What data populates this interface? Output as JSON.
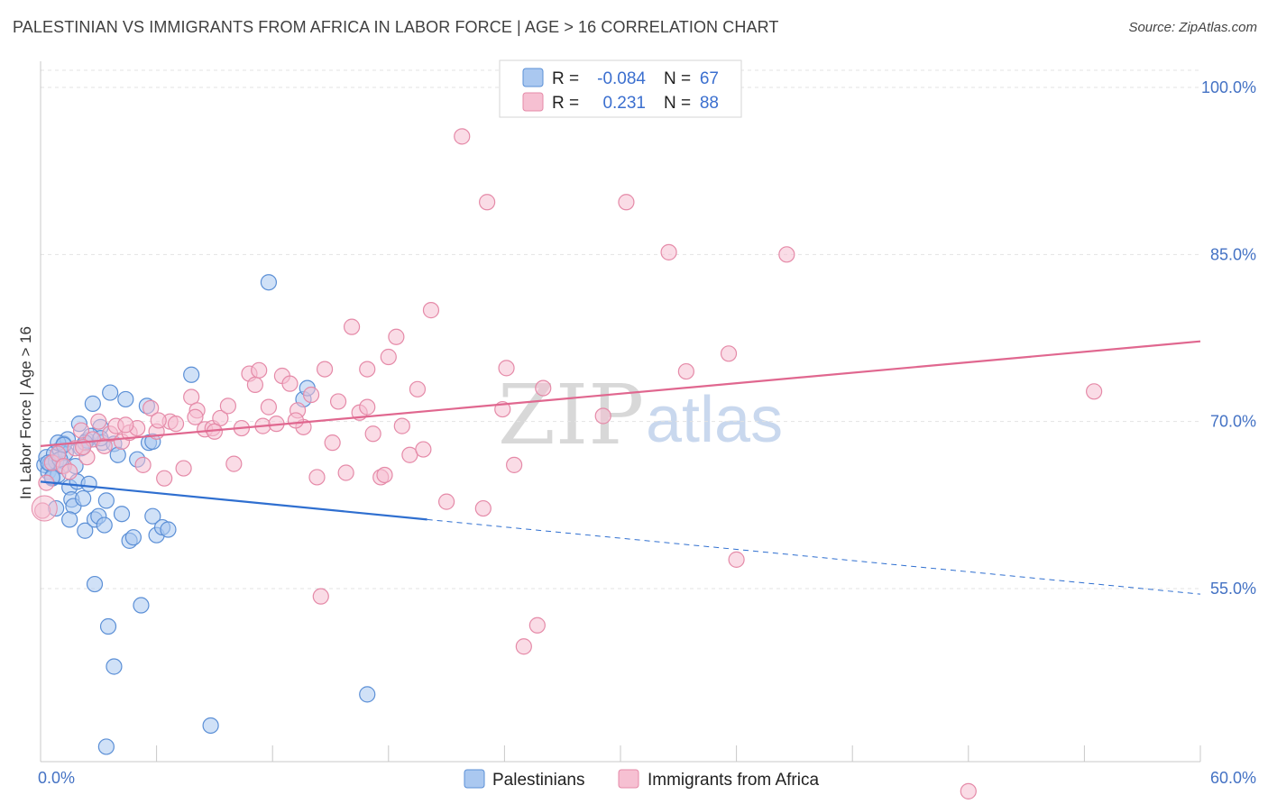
{
  "title": "PALESTINIAN VS IMMIGRANTS FROM AFRICA IN LABOR FORCE | AGE > 16 CORRELATION CHART",
  "source": "Source: ZipAtlas.com",
  "watermark": {
    "zip": "ZIP",
    "atlas": "atlas"
  },
  "colors": {
    "blue_fill": "#aac8f0",
    "blue_stroke": "#5b8fd6",
    "blue_line": "#2f6fd0",
    "pink_fill": "#f6c0d2",
    "pink_stroke": "#e58aa8",
    "pink_line": "#e0678f",
    "grid": "#e3e3e3",
    "tick_label": "#4472c4"
  },
  "legend": {
    "rows": [
      {
        "r_label": "R =",
        "r_value": "-0.084",
        "n_label": "N =",
        "n_value": "67"
      },
      {
        "r_label": "R =",
        "r_value": "0.231",
        "n_label": "N =",
        "n_value": "88"
      }
    ]
  },
  "chart_data": {
    "type": "scatter",
    "title": "PALESTINIAN VS IMMIGRANTS FROM AFRICA IN LABOR FORCE | AGE > 16 CORRELATION CHART",
    "xlabel": "",
    "ylabel": "In Labor Force | Age > 16",
    "xlim": [
      0,
      60
    ],
    "ylim": [
      40,
      102
    ],
    "x_tick_labels": [
      {
        "value": 0,
        "label": "0.0%"
      },
      {
        "value": 60,
        "label": "60.0%"
      }
    ],
    "y_tick_labels": [
      {
        "value": 55,
        "label": "55.0%"
      },
      {
        "value": 70,
        "label": "70.0%"
      },
      {
        "value": 85,
        "label": "85.0%"
      },
      {
        "value": 100,
        "label": "100.0%"
      }
    ],
    "series": [
      {
        "name": "Palestinians",
        "color": "#aac8f0",
        "trend": {
          "x0": 0,
          "y0": 64.6,
          "x1": 20,
          "y1": 61.2,
          "dashed_to_x": 60,
          "dashed_to_y": 54.5
        },
        "points": [
          [
            0.2,
            66.1
          ],
          [
            0.3,
            66.8
          ],
          [
            0.4,
            65.5
          ],
          [
            0.5,
            66.2
          ],
          [
            0.6,
            64.9
          ],
          [
            0.7,
            67.1
          ],
          [
            0.8,
            66.4
          ],
          [
            0.9,
            65.2
          ],
          [
            1.0,
            67.5
          ],
          [
            1.1,
            66.0
          ],
          [
            1.2,
            68.0
          ],
          [
            1.3,
            67.2
          ],
          [
            1.4,
            68.4
          ],
          [
            1.5,
            64.1
          ],
          [
            1.6,
            63.0
          ],
          [
            1.7,
            62.4
          ],
          [
            1.8,
            66.0
          ],
          [
            1.9,
            64.6
          ],
          [
            2.0,
            69.8
          ],
          [
            2.1,
            67.6
          ],
          [
            2.2,
            63.1
          ],
          [
            2.3,
            60.2
          ],
          [
            2.4,
            68.3
          ],
          [
            2.5,
            64.4
          ],
          [
            2.7,
            71.6
          ],
          [
            2.8,
            61.2
          ],
          [
            3.0,
            61.5
          ],
          [
            3.1,
            69.5
          ],
          [
            3.2,
            68.1
          ],
          [
            3.3,
            60.7
          ],
          [
            3.4,
            62.9
          ],
          [
            3.6,
            72.6
          ],
          [
            3.8,
            68.0
          ],
          [
            4.0,
            67.0
          ],
          [
            4.2,
            61.7
          ],
          [
            4.4,
            72.0
          ],
          [
            4.6,
            59.3
          ],
          [
            4.8,
            59.6
          ],
          [
            5.0,
            66.6
          ],
          [
            5.2,
            53.5
          ],
          [
            5.5,
            71.4
          ],
          [
            5.6,
            68.1
          ],
          [
            5.8,
            61.5
          ],
          [
            6.0,
            59.8
          ],
          [
            6.3,
            60.5
          ],
          [
            6.6,
            60.3
          ],
          [
            7.8,
            74.2
          ],
          [
            11.8,
            82.5
          ],
          [
            13.6,
            72.0
          ],
          [
            13.8,
            73.0
          ],
          [
            16.9,
            45.5
          ],
          [
            3.5,
            51.6
          ],
          [
            3.8,
            48.0
          ],
          [
            2.8,
            55.4
          ],
          [
            3.4,
            40.8
          ],
          [
            8.8,
            42.7
          ],
          [
            0.8,
            62.2
          ],
          [
            1.5,
            61.2
          ],
          [
            5.8,
            68.2
          ],
          [
            0.9,
            68.1
          ],
          [
            1.2,
            67.9
          ],
          [
            0.4,
            66.3
          ],
          [
            0.6,
            65.0
          ],
          [
            1.0,
            66.6
          ],
          [
            2.6,
            68.7
          ],
          [
            3.1,
            68.5
          ],
          [
            2.3,
            68.1
          ]
        ]
      },
      {
        "name": "Immigrants from Africa",
        "color": "#f6c0d2",
        "trend": {
          "x0": 0,
          "y0": 67.8,
          "x1": 60,
          "y1": 77.2
        },
        "points": [
          [
            0.1,
            62.0
          ],
          [
            0.3,
            64.5
          ],
          [
            0.6,
            66.3
          ],
          [
            0.9,
            67.1
          ],
          [
            1.2,
            66.0
          ],
          [
            1.5,
            65.5
          ],
          [
            1.8,
            67.6
          ],
          [
            2.1,
            69.2
          ],
          [
            2.4,
            66.8
          ],
          [
            2.7,
            68.4
          ],
          [
            3.0,
            70.0
          ],
          [
            3.3,
            67.8
          ],
          [
            3.6,
            68.9
          ],
          [
            3.9,
            69.6
          ],
          [
            4.2,
            68.2
          ],
          [
            4.6,
            69.0
          ],
          [
            5.0,
            69.4
          ],
          [
            5.3,
            66.1
          ],
          [
            5.7,
            71.2
          ],
          [
            6.0,
            69.1
          ],
          [
            6.4,
            64.9
          ],
          [
            6.7,
            70.0
          ],
          [
            7.0,
            69.8
          ],
          [
            7.4,
            65.8
          ],
          [
            7.8,
            72.2
          ],
          [
            8.1,
            71.0
          ],
          [
            8.5,
            69.3
          ],
          [
            8.9,
            69.4
          ],
          [
            9.3,
            70.3
          ],
          [
            9.7,
            71.4
          ],
          [
            10.0,
            66.2
          ],
          [
            10.4,
            69.4
          ],
          [
            10.8,
            74.3
          ],
          [
            11.1,
            73.3
          ],
          [
            11.5,
            69.6
          ],
          [
            11.8,
            71.3
          ],
          [
            12.2,
            69.8
          ],
          [
            12.5,
            74.1
          ],
          [
            12.9,
            73.4
          ],
          [
            13.3,
            71.0
          ],
          [
            13.6,
            69.5
          ],
          [
            14.0,
            72.4
          ],
          [
            14.3,
            65.0
          ],
          [
            14.7,
            74.7
          ],
          [
            15.1,
            68.1
          ],
          [
            15.4,
            71.8
          ],
          [
            15.8,
            65.4
          ],
          [
            16.1,
            78.5
          ],
          [
            16.5,
            70.8
          ],
          [
            16.9,
            71.3
          ],
          [
            17.2,
            68.9
          ],
          [
            17.6,
            65.0
          ],
          [
            18.0,
            75.8
          ],
          [
            18.4,
            77.6
          ],
          [
            18.7,
            69.6
          ],
          [
            19.1,
            67.0
          ],
          [
            19.5,
            72.9
          ],
          [
            19.8,
            67.5
          ],
          [
            20.2,
            80.0
          ],
          [
            21.0,
            62.8
          ],
          [
            21.8,
            95.6
          ],
          [
            22.9,
            62.2
          ],
          [
            23.1,
            89.7
          ],
          [
            23.9,
            71.1
          ],
          [
            24.1,
            74.8
          ],
          [
            24.5,
            66.1
          ],
          [
            25.0,
            49.8
          ],
          [
            25.7,
            51.7
          ],
          [
            26.0,
            73.0
          ],
          [
            29.1,
            70.5
          ],
          [
            30.3,
            89.7
          ],
          [
            32.5,
            85.2
          ],
          [
            33.4,
            74.5
          ],
          [
            35.6,
            76.1
          ],
          [
            36.0,
            57.6
          ],
          [
            38.6,
            85.0
          ],
          [
            48.0,
            36.8
          ],
          [
            54.5,
            72.7
          ],
          [
            14.5,
            54.3
          ],
          [
            17.8,
            65.2
          ],
          [
            11.3,
            74.6
          ],
          [
            8.0,
            70.4
          ],
          [
            13.2,
            70.1
          ],
          [
            16.9,
            74.7
          ],
          [
            9.0,
            69.1
          ],
          [
            6.1,
            70.1
          ],
          [
            4.4,
            69.7
          ],
          [
            2.2,
            67.7
          ]
        ]
      }
    ]
  },
  "bottom_legend": {
    "items": [
      {
        "label": "Palestinians"
      },
      {
        "label": "Immigrants from Africa"
      }
    ]
  }
}
